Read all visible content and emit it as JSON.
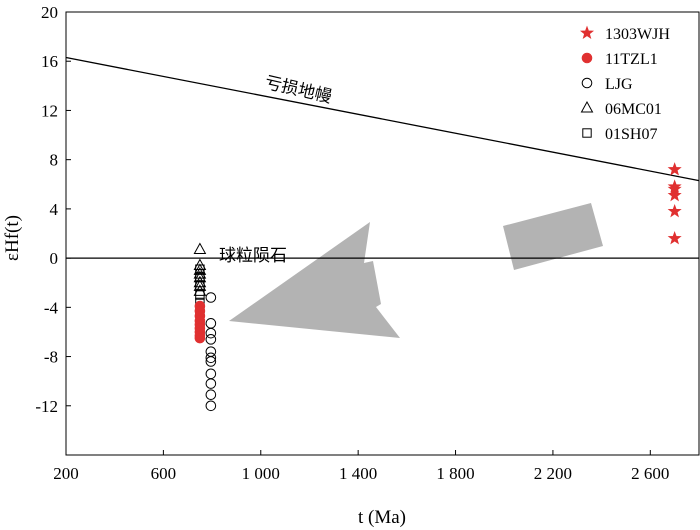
{
  "chart_data": {
    "type": "scatter",
    "title": "",
    "xlabel": "t (Ma)",
    "ylabel": "εHf(t)",
    "xlim": [
      200,
      2800
    ],
    "ylim": [
      -16,
      20
    ],
    "x_ticks": [
      200,
      600,
      1000,
      1400,
      1800,
      2200,
      2600
    ],
    "x_tick_labels": [
      "200",
      "600",
      "1 000",
      "1 400",
      "1 800",
      "2 200",
      "2 600"
    ],
    "y_ticks": [
      -12,
      -8,
      -4,
      0,
      4,
      8,
      12,
      16,
      20
    ],
    "y_tick_labels": [
      "-12",
      "-8",
      "-4",
      "0",
      "4",
      "8",
      "12",
      "16",
      "20"
    ],
    "legend_position": "top-right",
    "grid": false,
    "series": [
      {
        "name": "1303WJH",
        "marker": "star",
        "color": "#e03030",
        "filled": true,
        "points": [
          [
            2700,
            7.2
          ],
          [
            2700,
            5.8
          ],
          [
            2700,
            5.6
          ],
          [
            2700,
            5.1
          ],
          [
            2700,
            3.8
          ],
          [
            2700,
            1.6
          ]
        ]
      },
      {
        "name": "11TZL1",
        "marker": "circle",
        "color": "#e03030",
        "filled": true,
        "points": [
          [
            750,
            -3.9
          ],
          [
            750,
            -4.3
          ],
          [
            750,
            -4.7
          ],
          [
            750,
            -5.1
          ],
          [
            750,
            -5.4
          ],
          [
            750,
            -5.7
          ],
          [
            750,
            -6.0
          ],
          [
            750,
            -6.3
          ],
          [
            750,
            -6.5
          ]
        ]
      },
      {
        "name": "LJG",
        "marker": "circle",
        "color": "#000000",
        "filled": false,
        "points": [
          [
            795,
            -3.2
          ],
          [
            795,
            -5.3
          ],
          [
            795,
            -6.1
          ],
          [
            795,
            -6.6
          ],
          [
            795,
            -7.6
          ],
          [
            795,
            -8.1
          ],
          [
            795,
            -8.4
          ],
          [
            795,
            -9.4
          ],
          [
            795,
            -10.2
          ],
          [
            795,
            -11.1
          ],
          [
            795,
            -12.0
          ]
        ]
      },
      {
        "name": "06MC01",
        "marker": "triangle",
        "color": "#000000",
        "filled": false,
        "points": [
          [
            750,
            0.7
          ],
          [
            750,
            -0.6
          ],
          [
            750,
            -1.0
          ],
          [
            750,
            -1.3
          ],
          [
            750,
            -1.6
          ],
          [
            750,
            -2.0
          ],
          [
            750,
            -2.3
          ],
          [
            750,
            -2.7
          ]
        ]
      },
      {
        "name": "01SH07",
        "marker": "square",
        "color": "#000000",
        "filled": false,
        "points": [
          [
            750,
            -0.9
          ],
          [
            750,
            -1.5
          ],
          [
            750,
            -2.2
          ],
          [
            750,
            -3.0
          ],
          [
            750,
            -3.6
          ],
          [
            750,
            -4.4
          ]
        ]
      }
    ],
    "reference_lines": [
      {
        "label": "亏损地幔",
        "from": [
          200,
          16.3
        ],
        "to": [
          2800,
          6.3
        ]
      },
      {
        "label": "球粒陨石",
        "from": [
          200,
          0
        ],
        "to": [
          2800,
          0
        ]
      }
    ]
  }
}
